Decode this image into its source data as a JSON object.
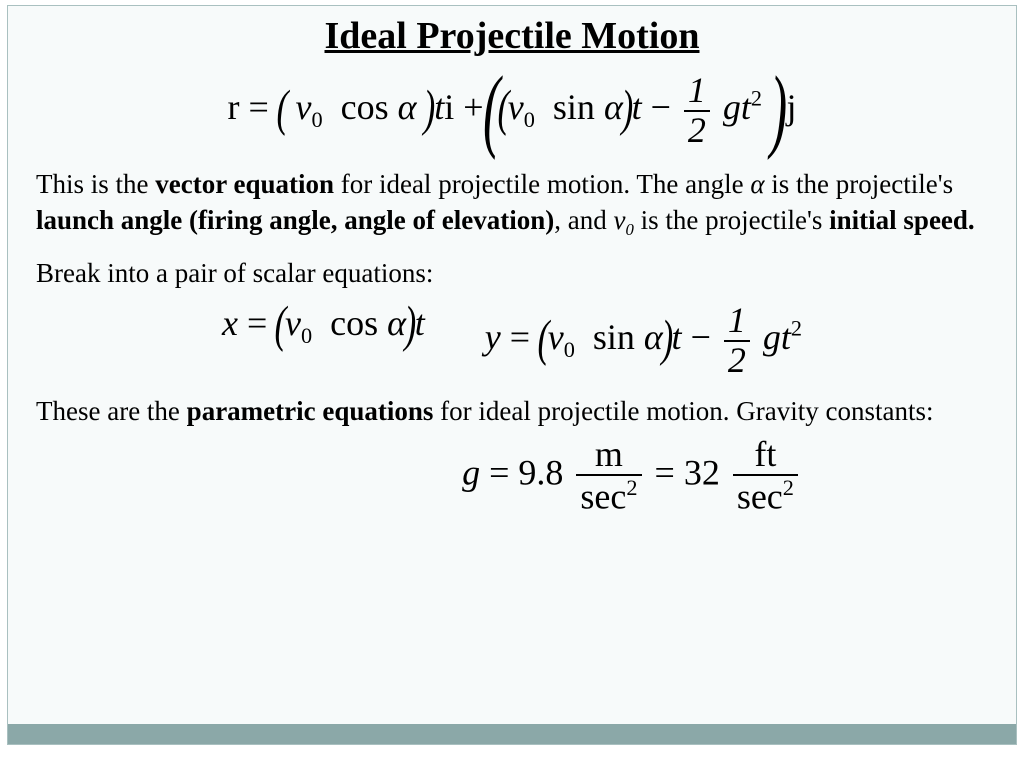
{
  "colors": {
    "slide_background": "#f7fafa",
    "slide_border": "#a9c0c0",
    "bottom_bar": "#8ba8a8",
    "text": "#000000"
  },
  "typography": {
    "title_fontsize": 38,
    "body_fontsize": 27,
    "equation_fontsize": 36,
    "font_family": "Georgia, Times New Roman, serif"
  },
  "title": "Ideal Projectile Motion",
  "equation_main": {
    "left": "r",
    "op": "=",
    "i_component": {
      "coeff_var": "v",
      "coeff_sub": "0",
      "trig": "cos",
      "angle": "α",
      "time": "t",
      "unit": "i"
    },
    "j_component": {
      "term1": {
        "coeff_var": "v",
        "coeff_sub": "0",
        "trig": "sin",
        "angle": "α",
        "time": "t"
      },
      "term2": {
        "frac_num": "1",
        "frac_den": "2",
        "g": "g",
        "t": "t",
        "t_exp": "2"
      },
      "unit": "j"
    }
  },
  "para1": {
    "t1": "This is the ",
    "b1": "vector equation",
    "t2": " for ideal projectile motion.  The angle ",
    "alpha": "α",
    "t3": "  is the projectile's ",
    "b2": "launch angle (firing angle, angle of elevation)",
    "t4": ", and  ",
    "v": "v",
    "vsub": "0",
    "t5": "  is the projectile's ",
    "b3": "initial speed."
  },
  "para2": "Break into a pair of scalar equations:",
  "equation_x": {
    "left": "x",
    "v": "v",
    "vsub": "0",
    "trig": "cos",
    "angle": "α",
    "t": "t"
  },
  "equation_y": {
    "left": "y",
    "v": "v",
    "vsub": "0",
    "trig": "sin",
    "angle": "α",
    "t": "t",
    "frac_num": "1",
    "frac_den": "2",
    "g": "g",
    "t2": "t",
    "t2exp": "2"
  },
  "para3": {
    "t1": "These are the ",
    "b1": "parametric equations",
    "t2": " for ideal projectile motion.  Gravity constants:"
  },
  "equation_g": {
    "g": "g",
    "val1": "9.8",
    "num1": "m",
    "den1": "sec",
    "den1exp": "2",
    "val2": "32",
    "num2": "ft",
    "den2": "sec",
    "den2exp": "2"
  }
}
